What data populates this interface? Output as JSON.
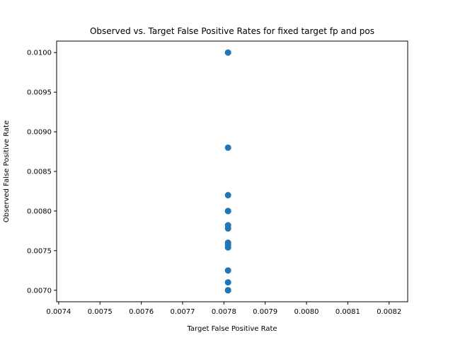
{
  "chart_data": {
    "type": "scatter",
    "title": "Observed vs. Target False Positive Rates for fixed target fp and pos",
    "xlabel": "Target False Positive Rate",
    "ylabel": "Observed False Positive Rate",
    "xlim": [
      0.007395,
      0.008245
    ],
    "ylim": [
      0.006855,
      0.010145
    ],
    "xticks": [
      0.0074,
      0.0075,
      0.0076,
      0.0077,
      0.0078,
      0.0079,
      0.008,
      0.0081,
      0.0082
    ],
    "xtick_labels": [
      "0.0074",
      "0.0075",
      "0.0076",
      "0.0077",
      "0.0078",
      "0.0079",
      "0.0080",
      "0.0081",
      "0.0082"
    ],
    "yticks": [
      0.007,
      0.0075,
      0.008,
      0.0085,
      0.009,
      0.0095,
      0.01
    ],
    "ytick_labels": [
      "0.0070",
      "0.0075",
      "0.0080",
      "0.0085",
      "0.0090",
      "0.0095",
      "0.0100"
    ],
    "grid": false,
    "marker_color": "#1f77b4",
    "points": [
      {
        "x": 0.00781,
        "y": 0.01
      },
      {
        "x": 0.00781,
        "y": 0.0088
      },
      {
        "x": 0.00781,
        "y": 0.0082
      },
      {
        "x": 0.00781,
        "y": 0.008
      },
      {
        "x": 0.00781,
        "y": 0.008
      },
      {
        "x": 0.00781,
        "y": 0.00782
      },
      {
        "x": 0.00781,
        "y": 0.00778
      },
      {
        "x": 0.00781,
        "y": 0.0076
      },
      {
        "x": 0.00781,
        "y": 0.00757
      },
      {
        "x": 0.00781,
        "y": 0.00754
      },
      {
        "x": 0.00781,
        "y": 0.00725
      },
      {
        "x": 0.00781,
        "y": 0.0071
      },
      {
        "x": 0.00781,
        "y": 0.007
      },
      {
        "x": 0.00781,
        "y": 0.007
      }
    ]
  }
}
